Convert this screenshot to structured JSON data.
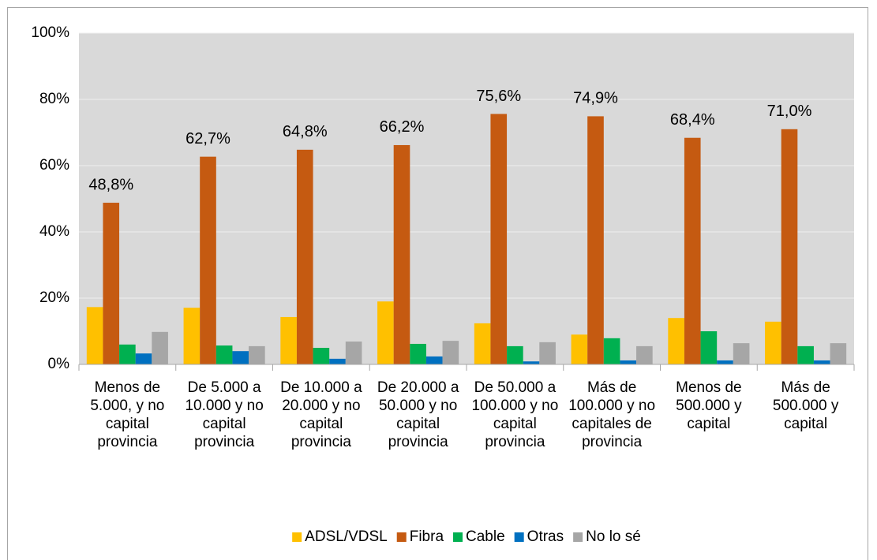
{
  "chart_data": {
    "type": "bar",
    "categories": [
      "Menos de 5.000, y no capital provincia",
      "De 5.000 a 10.000 y no capital provincia",
      "De 10.000 a 20.000 y no capital provincia",
      "De 20.000 a 50.000 y no capital provincia",
      "De 50.000 a 100.000 y no capital provincia",
      "Más de 100.000 y no capitales de provincia",
      "Menos de 500.000 y capital",
      "Más de 500.000 y capital"
    ],
    "series": [
      {
        "name": "ADSL/VDSL",
        "color": "#ffc000",
        "values": [
          17.3,
          17.1,
          14.3,
          19.0,
          12.4,
          9.0,
          14.0,
          12.9
        ]
      },
      {
        "name": "Fibra",
        "color": "#c55a11",
        "values": [
          48.8,
          62.7,
          64.8,
          66.2,
          75.6,
          74.9,
          68.4,
          71.0
        ],
        "value_labels": [
          "48,8%",
          "62,7%",
          "64,8%",
          "66,2%",
          "75,6%",
          "74,9%",
          "68,4%",
          "71,0%"
        ]
      },
      {
        "name": "Cable",
        "color": "#00b050",
        "values": [
          6.0,
          5.7,
          5.0,
          6.2,
          5.5,
          7.9,
          10.0,
          5.5
        ]
      },
      {
        "name": "Otras",
        "color": "#0070c0",
        "values": [
          3.3,
          4.0,
          1.7,
          2.4,
          0.9,
          1.2,
          1.2,
          1.2
        ]
      },
      {
        "name": "No lo sé",
        "color": "#a6a6a6",
        "values": [
          9.8,
          5.5,
          6.9,
          7.1,
          6.7,
          5.5,
          6.4,
          6.4
        ]
      }
    ],
    "ylim": [
      0,
      100
    ],
    "yticks": [
      {
        "value": 0,
        "label": "0%"
      },
      {
        "value": 20,
        "label": "20%"
      },
      {
        "value": 40,
        "label": "40%"
      },
      {
        "value": 60,
        "label": "60%"
      },
      {
        "value": 80,
        "label": "80%"
      },
      {
        "value": 100,
        "label": "100%"
      }
    ],
    "grid": true,
    "legend": "bottom"
  }
}
